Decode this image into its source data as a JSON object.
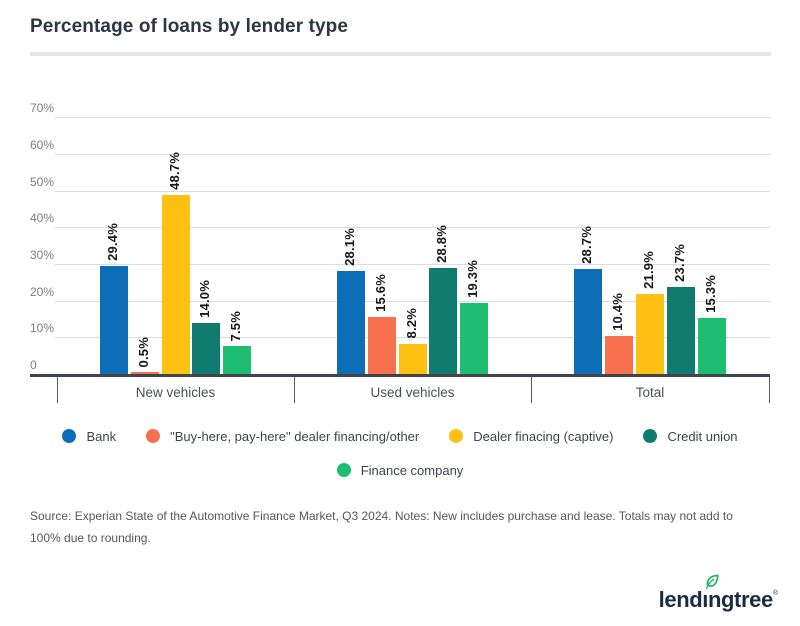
{
  "header": {
    "title": "Percentage of loans by lender type"
  },
  "chart_data": {
    "type": "bar",
    "title": "Percentage of loans by lender type",
    "categories": [
      "New vehicles",
      "Used vehicles",
      "Total"
    ],
    "series": [
      {
        "name": "Bank",
        "color": "#0d6eb8",
        "values": [
          29.4,
          28.1,
          28.7
        ]
      },
      {
        "name": "\"Buy-here, pay-here\" dealer financing/other",
        "color": "#f8704d",
        "values": [
          0.5,
          15.6,
          10.4
        ]
      },
      {
        "name": "Dealer finacing (captive)",
        "color": "#fdc013",
        "values": [
          48.7,
          8.2,
          21.9
        ]
      },
      {
        "name": "Credit union",
        "color": "#0f7b6e",
        "values": [
          14.0,
          28.8,
          23.7
        ]
      },
      {
        "name": "Finance company",
        "color": "#1dbe72",
        "values": [
          7.5,
          19.3,
          15.3
        ]
      }
    ],
    "xlabel": "",
    "ylabel": "",
    "ylim": [
      0,
      70
    ],
    "ytick_step": 10,
    "ytick_labels": [
      "0",
      "10%",
      "20%",
      "30%",
      "40%",
      "50%",
      "60%",
      "70%"
    ],
    "bar_value_suffix": "%",
    "grid": true,
    "legend_position": "bottom",
    "legend_rows": [
      4,
      1
    ]
  },
  "footer": {
    "source": "Source: Experian State of the Automotive Finance Market, Q3 2024. Notes: New includes purchase and lease. Totals may not add to 100% due to rounding.",
    "logo_text": "lendingtree",
    "logo_reg": "®"
  }
}
